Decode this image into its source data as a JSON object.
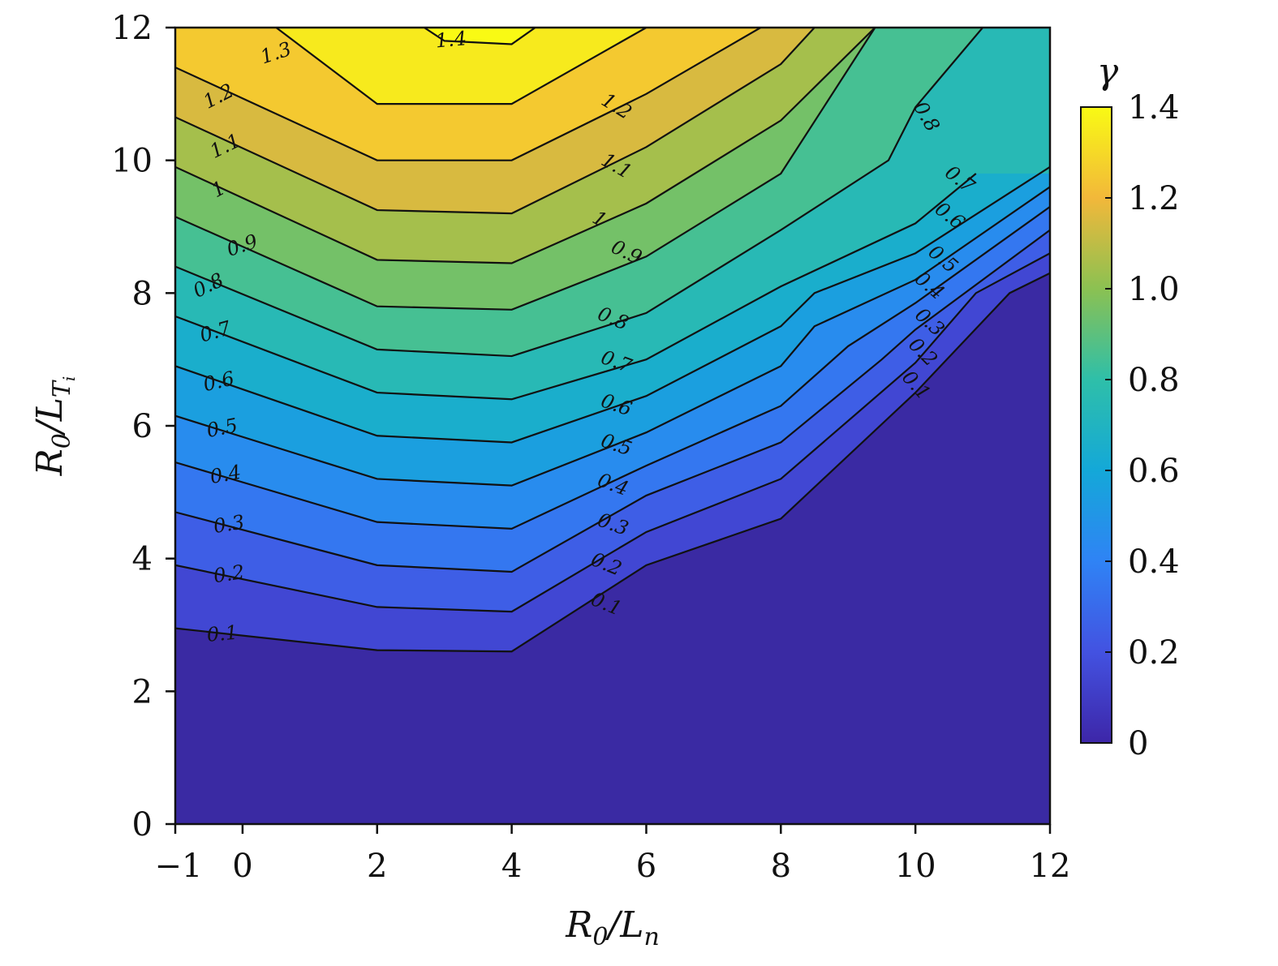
{
  "chart_data": {
    "type": "contour",
    "xlabel": {
      "base": "R",
      "sub": "0",
      "mid": "/L",
      "sub2": "n"
    },
    "ylabel": {
      "base": "R",
      "sub": "0",
      "mid": "/L",
      "sub2": "T",
      "sub3": "i"
    },
    "xlim": [
      -1,
      12
    ],
    "ylim": [
      0,
      12
    ],
    "x_ticks": [
      -1,
      0,
      2,
      4,
      6,
      8,
      10,
      12
    ],
    "x_tick_labels": [
      "−1",
      "0",
      "2",
      "4",
      "6",
      "8",
      "10",
      "12"
    ],
    "y_ticks": [
      0,
      2,
      4,
      6,
      8,
      10,
      12
    ],
    "y_tick_labels": [
      "0",
      "2",
      "4",
      "6",
      "8",
      "10",
      "12"
    ],
    "colorbar": {
      "title": "γ",
      "range": [
        0,
        1.4
      ],
      "ticks": [
        0,
        0.2,
        0.4,
        0.6,
        0.8,
        1.0,
        1.2,
        1.4
      ],
      "tick_labels": [
        "0",
        "0.2",
        "0.4",
        "0.6",
        "0.8",
        "1.0",
        "1.2",
        "1.4"
      ],
      "colormap": "parula"
    },
    "contour_levels": [
      {
        "level": 0.1,
        "label": "0.1",
        "points": [
          [
            -1,
            2.95
          ],
          [
            2,
            2.62
          ],
          [
            4,
            2.6
          ],
          [
            6,
            3.9
          ],
          [
            8,
            4.6
          ],
          [
            10,
            6.5
          ],
          [
            11.4,
            8.0
          ],
          [
            12,
            8.3
          ]
        ]
      },
      {
        "level": 0.2,
        "label": "0.2",
        "points": [
          [
            -1,
            3.9
          ],
          [
            2,
            3.27
          ],
          [
            4,
            3.2
          ],
          [
            6,
            4.4
          ],
          [
            8,
            5.2
          ],
          [
            10,
            6.95
          ],
          [
            10.9,
            8.0
          ],
          [
            12,
            8.6
          ]
        ]
      },
      {
        "level": 0.3,
        "label": "0.3",
        "points": [
          [
            -1,
            4.7
          ],
          [
            2,
            3.9
          ],
          [
            4,
            3.8
          ],
          [
            6,
            4.95
          ],
          [
            8,
            5.75
          ],
          [
            9.5,
            7.0
          ],
          [
            10,
            7.45
          ],
          [
            12,
            8.95
          ]
        ]
      },
      {
        "level": 0.4,
        "label": "0.4",
        "points": [
          [
            -1,
            5.45
          ],
          [
            2,
            4.55
          ],
          [
            4,
            4.45
          ],
          [
            6,
            5.4
          ],
          [
            8,
            6.3
          ],
          [
            9,
            7.2
          ],
          [
            10,
            7.85
          ],
          [
            12,
            9.3
          ]
        ]
      },
      {
        "level": 0.5,
        "label": "0.5",
        "points": [
          [
            -1,
            6.15
          ],
          [
            2,
            5.2
          ],
          [
            4,
            5.1
          ],
          [
            6,
            5.9
          ],
          [
            8,
            6.9
          ],
          [
            8.5,
            7.5
          ],
          [
            10,
            8.2
          ],
          [
            12,
            9.6
          ]
        ]
      },
      {
        "level": 0.6,
        "label": "0.6",
        "points": [
          [
            -1,
            6.9
          ],
          [
            2,
            5.85
          ],
          [
            4,
            5.75
          ],
          [
            6,
            6.45
          ],
          [
            8,
            7.5
          ],
          [
            8.5,
            8.0
          ],
          [
            10,
            8.6
          ],
          [
            12,
            9.9
          ]
        ]
      },
      {
        "level": 0.7,
        "label": "0.7",
        "points": [
          [
            -1,
            7.65
          ],
          [
            2,
            6.5
          ],
          [
            4,
            6.4
          ],
          [
            6,
            7.0
          ],
          [
            8,
            8.1
          ],
          [
            10,
            9.05
          ],
          [
            10.9,
            9.8
          ]
        ]
      },
      {
        "level": 0.8,
        "label": "0.8",
        "points": [
          [
            -1,
            8.4
          ],
          [
            2,
            7.15
          ],
          [
            4,
            7.05
          ],
          [
            6,
            7.7
          ],
          [
            8,
            8.95
          ],
          [
            9.6,
            10.0
          ],
          [
            10,
            10.8
          ],
          [
            11.0,
            12.0
          ]
        ]
      },
      {
        "level": 0.9,
        "label": "0.9",
        "points": [
          [
            -1,
            9.15
          ],
          [
            2,
            7.8
          ],
          [
            4,
            7.75
          ],
          [
            6,
            8.55
          ],
          [
            8,
            9.8
          ],
          [
            9.4,
            12.0
          ]
        ]
      },
      {
        "level": 1.0,
        "label": "1",
        "points": [
          [
            -1,
            9.9
          ],
          [
            2,
            8.5
          ],
          [
            4,
            8.45
          ],
          [
            6,
            9.35
          ],
          [
            8,
            10.6
          ],
          [
            9.4,
            12.0
          ]
        ]
      },
      {
        "level": 1.1,
        "label": "1.1",
        "points": [
          [
            -1,
            10.65
          ],
          [
            2,
            9.25
          ],
          [
            4,
            9.2
          ],
          [
            6,
            10.2
          ],
          [
            8,
            11.45
          ],
          [
            8.5,
            12.0
          ]
        ]
      },
      {
        "level": 1.2,
        "label": "1.2",
        "points": [
          [
            -1,
            11.4
          ],
          [
            2,
            10.0
          ],
          [
            4,
            10.0
          ],
          [
            6,
            11.0
          ],
          [
            7.7,
            12.0
          ]
        ]
      },
      {
        "level": 1.3,
        "label": "1.3",
        "points": [
          [
            0.5,
            12.0
          ],
          [
            2,
            10.85
          ],
          [
            4,
            10.85
          ],
          [
            6,
            12.0
          ]
        ]
      },
      {
        "level": 1.4,
        "label": "1.4",
        "points": [
          [
            2.7,
            12.0
          ],
          [
            3,
            11.8
          ],
          [
            4,
            11.75
          ],
          [
            4.35,
            12.0
          ]
        ]
      }
    ],
    "contour_labels": [
      {
        "text": "0.1",
        "x": -0.3,
        "y": 2.85,
        "angle": 5
      },
      {
        "text": "0.2",
        "x": -0.2,
        "y": 3.75,
        "angle": 8
      },
      {
        "text": "0.3",
        "x": -0.2,
        "y": 4.5,
        "angle": 9
      },
      {
        "text": "0.4",
        "x": -0.25,
        "y": 5.25,
        "angle": 10
      },
      {
        "text": "0.5",
        "x": -0.3,
        "y": 5.95,
        "angle": 11
      },
      {
        "text": "0.6",
        "x": -0.35,
        "y": 6.65,
        "angle": 13
      },
      {
        "text": "0.7",
        "x": -0.4,
        "y": 7.4,
        "angle": 16
      },
      {
        "text": "0.8",
        "x": -0.5,
        "y": 8.1,
        "angle": 26
      },
      {
        "text": "0.9",
        "x": 0.0,
        "y": 8.7,
        "angle": 18
      },
      {
        "text": "1",
        "x": -0.35,
        "y": 9.55,
        "angle": 28
      },
      {
        "text": "1.1",
        "x": -0.25,
        "y": 10.2,
        "angle": 26
      },
      {
        "text": "1.2",
        "x": -0.35,
        "y": 10.95,
        "angle": 27
      },
      {
        "text": "1.3",
        "x": 0.5,
        "y": 11.6,
        "angle": 18
      },
      {
        "text": "1.4",
        "x": 3.1,
        "y": 11.8,
        "angle": 5
      },
      {
        "text": "0.1",
        "x": 5.4,
        "y": 3.3,
        "angle": -22
      },
      {
        "text": "0.2",
        "x": 5.4,
        "y": 3.9,
        "angle": -22
      },
      {
        "text": "0.3",
        "x": 5.5,
        "y": 4.5,
        "angle": -20
      },
      {
        "text": "0.4",
        "x": 5.5,
        "y": 5.1,
        "angle": -20
      },
      {
        "text": "0.5",
        "x": 5.55,
        "y": 5.7,
        "angle": -19
      },
      {
        "text": "0.6",
        "x": 5.55,
        "y": 6.3,
        "angle": -19
      },
      {
        "text": "0.7",
        "x": 5.55,
        "y": 6.95,
        "angle": -20
      },
      {
        "text": "0.8",
        "x": 5.5,
        "y": 7.6,
        "angle": -22
      },
      {
        "text": "0.9",
        "x": 5.7,
        "y": 8.6,
        "angle": -25
      },
      {
        "text": "1",
        "x": 5.3,
        "y": 9.1,
        "angle": -30
      },
      {
        "text": "1.1",
        "x": 5.55,
        "y": 9.9,
        "angle": -30
      },
      {
        "text": "1.2",
        "x": 5.55,
        "y": 10.8,
        "angle": -32
      },
      {
        "text": "0.1",
        "x": 10.0,
        "y": 6.6,
        "angle": -48
      },
      {
        "text": "0.2",
        "x": 10.1,
        "y": 7.1,
        "angle": -45
      },
      {
        "text": "0.3",
        "x": 10.2,
        "y": 7.55,
        "angle": -42
      },
      {
        "text": "0.4",
        "x": 10.2,
        "y": 8.1,
        "angle": -40
      },
      {
        "text": "0.5",
        "x": 10.4,
        "y": 8.5,
        "angle": -40
      },
      {
        "text": "0.6",
        "x": 10.5,
        "y": 9.15,
        "angle": -38
      },
      {
        "text": "0.7",
        "x": 10.65,
        "y": 9.7,
        "angle": -38
      },
      {
        "text": "0.8",
        "x": 10.15,
        "y": 10.65,
        "angle": -60
      }
    ]
  }
}
